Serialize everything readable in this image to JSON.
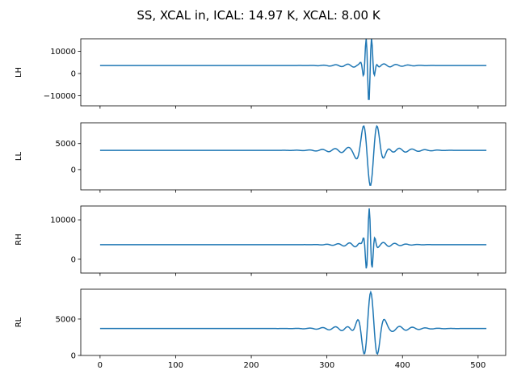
{
  "chart_data": {
    "type": "line",
    "title": "SS, XCAL in, ICAL: 14.97 K, XCAL: 8.00 K",
    "xlim": [
      -25.5,
      536.5
    ],
    "x_ticks": [
      0,
      100,
      200,
      300,
      400,
      500
    ],
    "x_tick_labels": [
      "0",
      "100",
      "200",
      "300",
      "400",
      "500"
    ],
    "n_samples": 512,
    "line_color": "#1f77b4",
    "panels": [
      {
        "ylabel": "LH",
        "ylim": [
          -14500,
          15600
        ],
        "y_ticks": [
          10000,
          0,
          -10000
        ],
        "y_tick_labels": [
          "10000",
          "0",
          "−10000"
        ],
        "model": {
          "baseline": 3600,
          "center": 355.5,
          "amplitude": -16700,
          "period": 7.6,
          "width": 6.5,
          "ripple_amplitude": 900,
          "ripple_period": 16,
          "ripple_width": 45
        }
      },
      {
        "ylabel": "LL",
        "ylim": [
          -3900,
          9000
        ],
        "y_ticks": [
          5000,
          0
        ],
        "y_tick_labels": [
          "5000",
          "0"
        ],
        "model": {
          "baseline": 3700,
          "center": 357.5,
          "amplitude": -6800,
          "period": 19,
          "width": 15,
          "ripple_amplitude": 700,
          "ripple_period": 17,
          "ripple_width": 55
        }
      },
      {
        "ylabel": "RH",
        "ylim": [
          -3500,
          13500
        ],
        "y_ticks": [
          10000,
          0
        ],
        "y_tick_labels": [
          "10000",
          "0"
        ],
        "model": {
          "baseline": 3700,
          "center": 356,
          "amplitude": 9200,
          "period": 8,
          "width": 6,
          "ripple_amplitude": 700,
          "ripple_period": 15,
          "ripple_width": 40
        }
      },
      {
        "ylabel": "RL",
        "ylim": [
          0,
          9100
        ],
        "y_ticks": [
          5000,
          0
        ],
        "y_tick_labels": [
          "5000",
          "0"
        ],
        "model": {
          "baseline": 3700,
          "center": 358,
          "amplitude": 5000,
          "period": 18.5,
          "width": 15,
          "ripple_amplitude": 500,
          "ripple_period": 17,
          "ripple_width": 55
        }
      }
    ]
  }
}
